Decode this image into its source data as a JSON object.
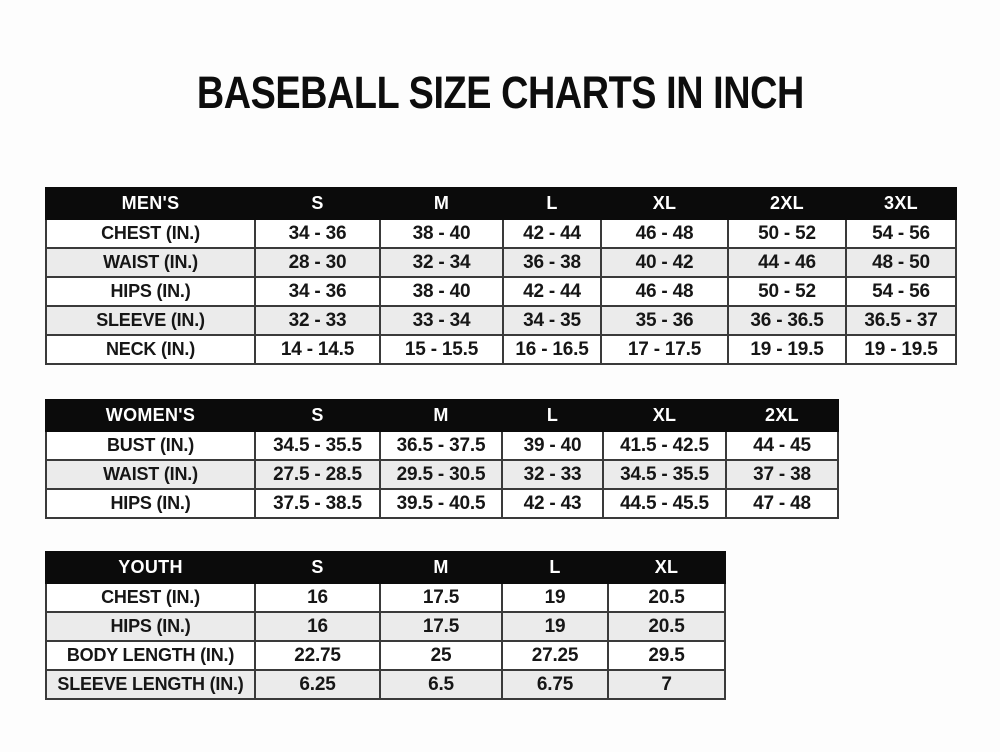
{
  "page": {
    "title": "BASEBALL SIZE CHARTS IN INCH"
  },
  "colors": {
    "page_background": "#fdfdfd",
    "title_text": "#0d0d0d",
    "table_header_background": "#0b0b0b",
    "table_header_text": "#ffffff",
    "row_background": "#ffffff",
    "row_alt_background": "#ebebeb",
    "table_border": "#3a3a3a",
    "cell_text": "#161616"
  },
  "chart_data": [
    {
      "type": "table",
      "title": "MEN'S",
      "columns": [
        "S",
        "M",
        "L",
        "XL",
        "2XL",
        "3XL"
      ],
      "rows": [
        {
          "label": "CHEST (IN.)",
          "values": [
            "34 - 36",
            "38 - 40",
            "42 - 44",
            "46 - 48",
            "50 - 52",
            "54 - 56"
          ]
        },
        {
          "label": "WAIST (IN.)",
          "values": [
            "28 - 30",
            "32 - 34",
            "36 - 38",
            "40 - 42",
            "44 - 46",
            "48 - 50"
          ]
        },
        {
          "label": "HIPS (IN.)",
          "values": [
            "34 - 36",
            "38 - 40",
            "42 - 44",
            "46 - 48",
            "50 - 52",
            "54 - 56"
          ]
        },
        {
          "label": "SLEEVE (IN.)",
          "values": [
            "32 - 33",
            "33 - 34",
            "34 - 35",
            "35 - 36",
            "36 - 36.5",
            "36.5 - 37"
          ]
        },
        {
          "label": "NECK (IN.)",
          "values": [
            "14 - 14.5",
            "15 - 15.5",
            "16 - 16.5",
            "17 - 17.5",
            "19 - 19.5",
            "19 - 19.5"
          ]
        }
      ]
    },
    {
      "type": "table",
      "title": "WOMEN'S",
      "columns": [
        "S",
        "M",
        "L",
        "XL",
        "2XL"
      ],
      "rows": [
        {
          "label": "BUST (IN.)",
          "values": [
            "34.5 - 35.5",
            "36.5 - 37.5",
            "39 - 40",
            "41.5 - 42.5",
            "44 - 45"
          ]
        },
        {
          "label": "WAIST (IN.)",
          "values": [
            "27.5 - 28.5",
            "29.5 - 30.5",
            "32 - 33",
            "34.5 - 35.5",
            "37 - 38"
          ]
        },
        {
          "label": "HIPS (IN.)",
          "values": [
            "37.5 - 38.5",
            "39.5 - 40.5",
            "42 - 43",
            "44.5 - 45.5",
            "47 - 48"
          ]
        }
      ]
    },
    {
      "type": "table",
      "title": "YOUTH",
      "columns": [
        "S",
        "M",
        "L",
        "XL"
      ],
      "rows": [
        {
          "label": "CHEST (IN.)",
          "values": [
            "16",
            "17.5",
            "19",
            "20.5"
          ]
        },
        {
          "label": "HIPS (IN.)",
          "values": [
            "16",
            "17.5",
            "19",
            "20.5"
          ]
        },
        {
          "label": "BODY LENGTH (IN.)",
          "values": [
            "22.75",
            "25",
            "27.25",
            "29.5"
          ]
        },
        {
          "label": "SLEEVE LENGTH (IN.)",
          "values": [
            "6.25",
            "6.5",
            "6.75",
            "7"
          ]
        }
      ]
    }
  ]
}
